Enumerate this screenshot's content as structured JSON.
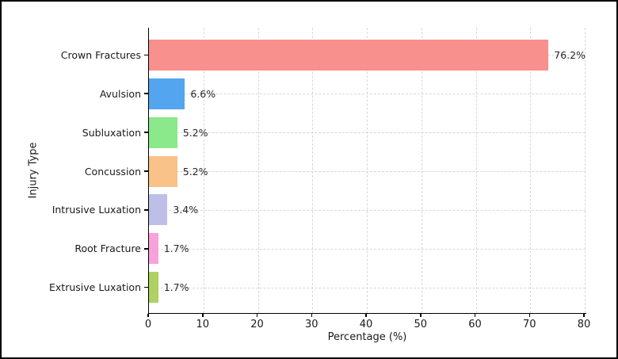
{
  "chart_data": {
    "type": "bar",
    "orientation": "horizontal",
    "title": "",
    "xlabel": "Percentage (%)",
    "ylabel": "Injury Type",
    "categories": [
      "Crown Fractures",
      "Avulsion",
      "Subluxation",
      "Concussion",
      "Intrusive Luxation",
      "Root Fracture",
      "Extrusive Luxation"
    ],
    "values": [
      76.2,
      6.6,
      5.2,
      5.2,
      3.4,
      1.7,
      1.7
    ],
    "value_labels": [
      "76.2%",
      "6.6%",
      "5.2%",
      "5.2%",
      "3.4%",
      "1.7%",
      "1.7%"
    ],
    "bar_colors": [
      "#f8908e",
      "#54a5f0",
      "#8be88b",
      "#f8c288",
      "#bebfe9",
      "#f8a2db",
      "#aed161"
    ],
    "xlim": [
      0,
      80
    ],
    "x_ticks": [
      0,
      10,
      20,
      30,
      40,
      50,
      60,
      70,
      80
    ],
    "grid": "dashed",
    "grid_color": "#d7d7d7",
    "legend_position": "none"
  }
}
